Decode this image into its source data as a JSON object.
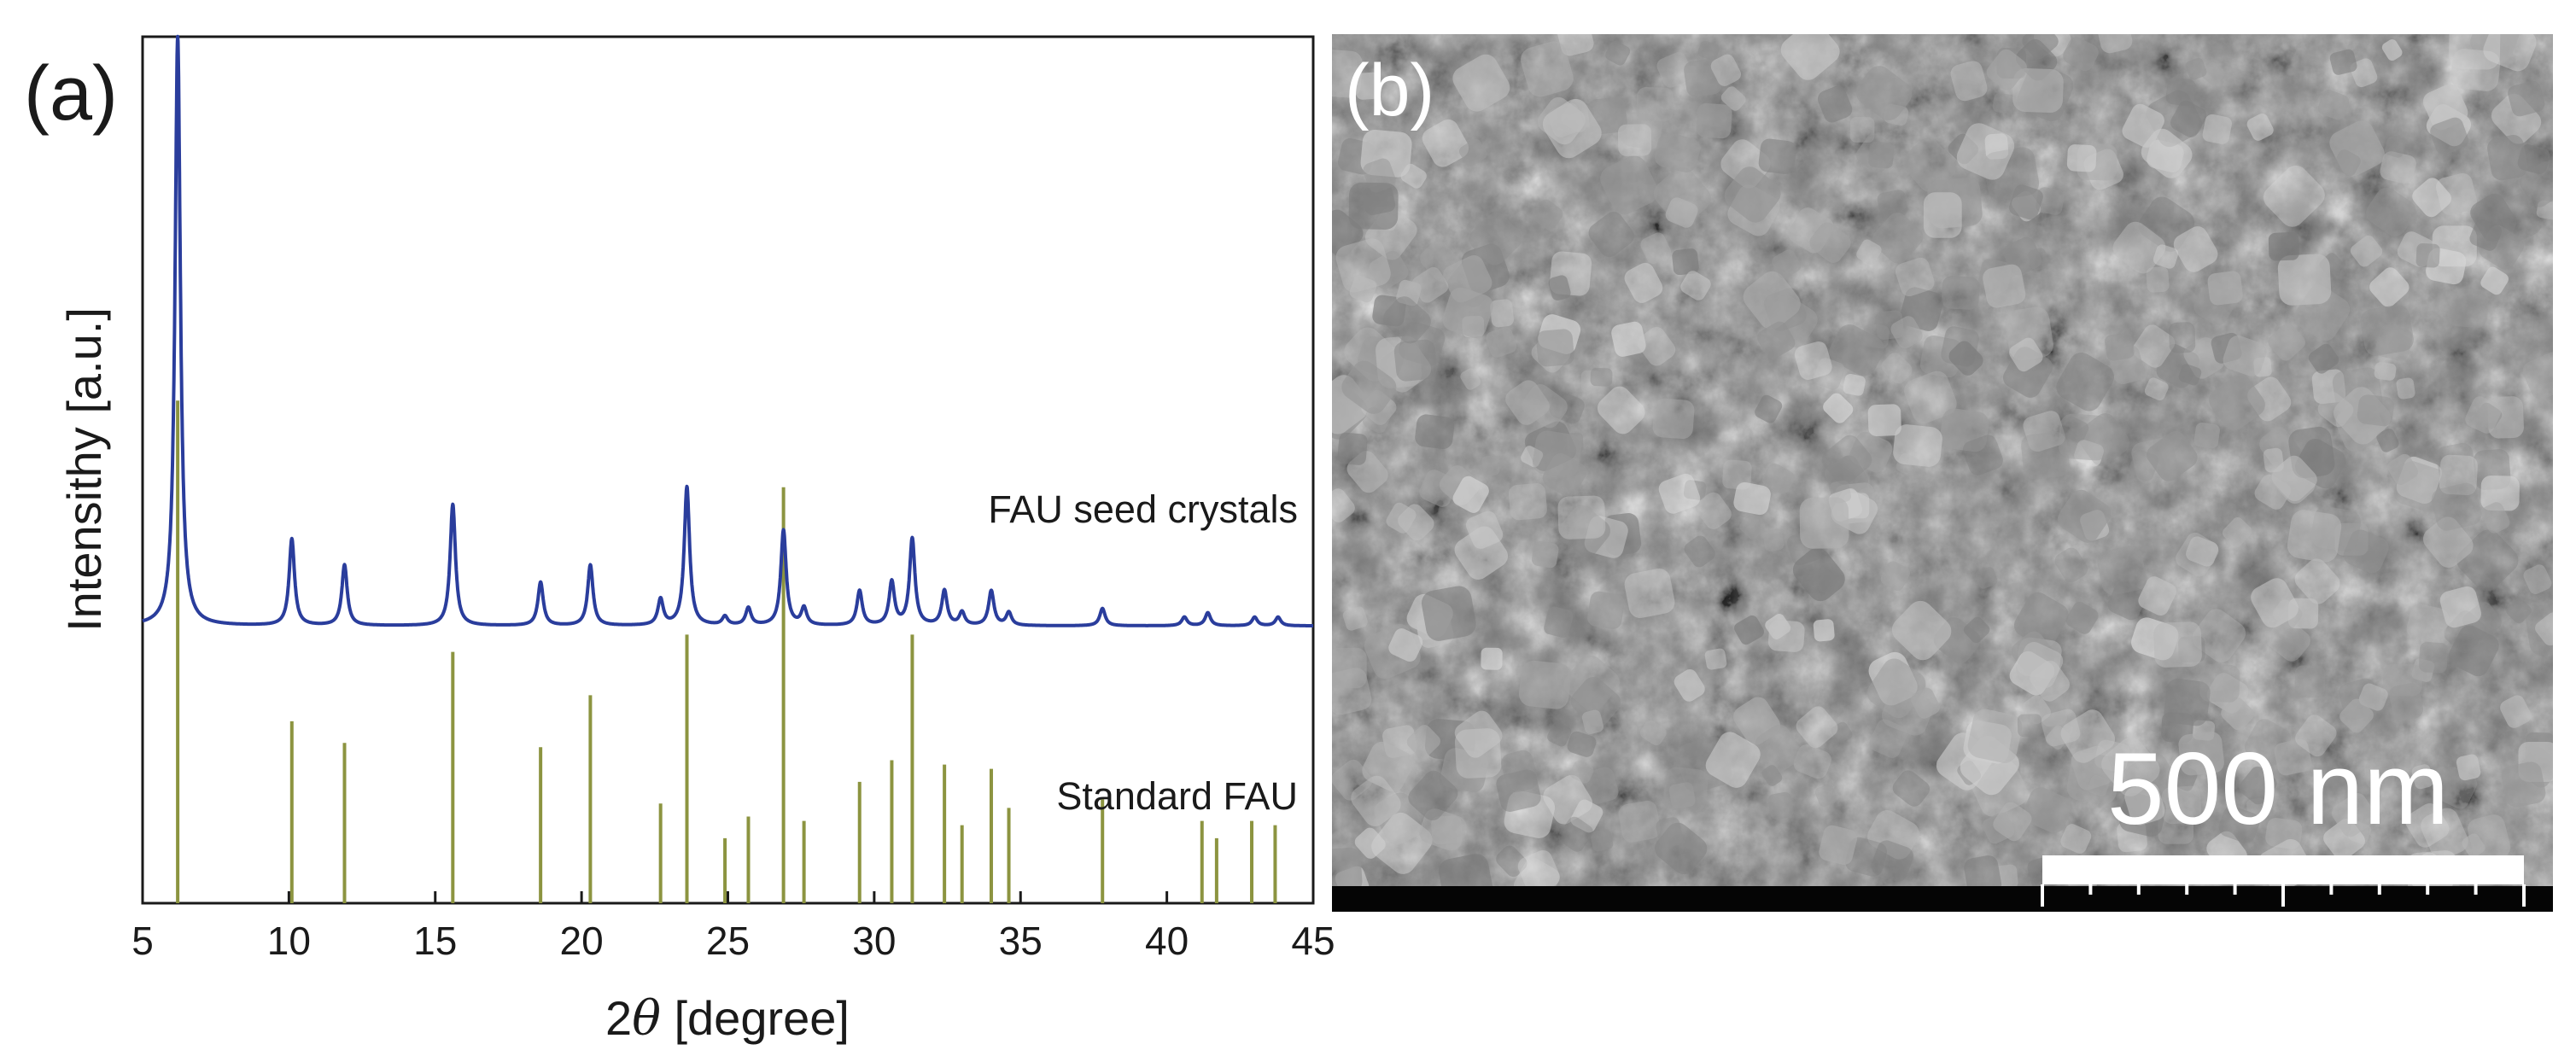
{
  "panel_a": {
    "label": "(a)",
    "chart_data": {
      "type": "line",
      "xlabel": "2θ [degree]",
      "xlabel_prefix": "2",
      "xlabel_symbol": "θ",
      "xlabel_suffix": " [degree]",
      "ylabel": "Intensithy [a.u.]",
      "xlim": [
        5,
        45
      ],
      "ylim": [
        0,
        100
      ],
      "xticks": [
        5,
        10,
        15,
        20,
        25,
        30,
        35,
        40,
        45
      ],
      "y_ticklabels": false,
      "grid": false,
      "legend": "none",
      "series": [
        {
          "name": "FAU seed crystals",
          "kind": "xrd-pattern",
          "color": "#2a3d9c",
          "baseline": 32,
          "peaks": [
            [
              6.2,
              100
            ],
            [
              10.1,
              42
            ],
            [
              11.9,
              39
            ],
            [
              15.6,
              46
            ],
            [
              18.6,
              37
            ],
            [
              20.3,
              39
            ],
            [
              22.7,
              35
            ],
            [
              23.6,
              48
            ],
            [
              24.9,
              33
            ],
            [
              25.7,
              34
            ],
            [
              26.9,
              43
            ],
            [
              27.6,
              34
            ],
            [
              29.5,
              36
            ],
            [
              30.6,
              37
            ],
            [
              31.3,
              42
            ],
            [
              32.4,
              36
            ],
            [
              33.0,
              33.5
            ],
            [
              34.0,
              36
            ],
            [
              34.6,
              33.5
            ],
            [
              37.8,
              34
            ],
            [
              40.6,
              33
            ],
            [
              41.4,
              33.5
            ],
            [
              43.0,
              33
            ],
            [
              43.8,
              33
            ]
          ]
        },
        {
          "name": "Standard FAU",
          "kind": "stick",
          "color": "#8c9440",
          "sticks": [
            [
              6.2,
              58
            ],
            [
              10.1,
              21
            ],
            [
              11.9,
              18.5
            ],
            [
              15.6,
              29
            ],
            [
              18.6,
              18
            ],
            [
              20.3,
              24
            ],
            [
              22.7,
              11.5
            ],
            [
              23.6,
              31
            ],
            [
              24.9,
              7.5
            ],
            [
              25.7,
              10
            ],
            [
              26.9,
              48
            ],
            [
              27.6,
              9.5
            ],
            [
              29.5,
              14
            ],
            [
              30.6,
              16.5
            ],
            [
              31.3,
              31
            ],
            [
              32.4,
              16
            ],
            [
              33.0,
              9
            ],
            [
              34.0,
              15.5
            ],
            [
              34.6,
              11
            ],
            [
              37.8,
              12
            ],
            [
              41.2,
              9.5
            ],
            [
              41.7,
              7.5
            ],
            [
              42.9,
              9.5
            ],
            [
              43.7,
              9
            ]
          ]
        }
      ]
    }
  },
  "panel_b": {
    "label": "(b)",
    "scale_bar": "500 nm",
    "colors": {
      "background": "#7c7c7c",
      "info_bar": "#050505",
      "scale_bar": "#ffffff"
    }
  }
}
